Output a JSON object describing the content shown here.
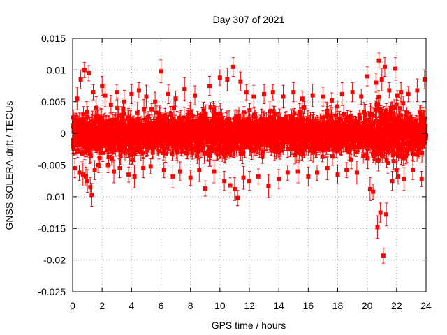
{
  "chart_data": {
    "type": "scatter",
    "title": "Day 307 of 2021",
    "xlabel": "GPS time / hours",
    "ylabel": "GNSS SOLERA-drift / TECUs",
    "xlim": [
      0,
      24
    ],
    "ylim": [
      -0.025,
      0.015
    ],
    "x_ticks": [
      0,
      2,
      4,
      6,
      8,
      10,
      12,
      14,
      16,
      18,
      20,
      22,
      24
    ],
    "x_tick_labels": [
      "0",
      "2",
      "4",
      "6",
      "8",
      "10",
      "12",
      "14",
      "16",
      "18",
      "20",
      "22",
      "24"
    ],
    "y_ticks": [
      0.015,
      0.01,
      0.005,
      0,
      -0.005,
      -0.01,
      -0.015,
      -0.02,
      -0.025
    ],
    "y_tick_labels": [
      "0.015",
      "0.01",
      "0.005",
      "0",
      "-0.005",
      "-0.01",
      "-0.015",
      "-0.02",
      "-0.025"
    ],
    "grid": true,
    "series": [
      {
        "name": "SOLERA drift",
        "color": "#ff0000",
        "marker": "square",
        "error_bars": true,
        "typical_spread": 0.0027,
        "typical_error": 0.0012,
        "x": [
          0.05,
          0.15,
          0.3,
          0.45,
          0.55,
          0.7,
          0.8,
          0.9,
          1.0,
          1.1,
          1.2,
          1.3,
          1.4,
          1.5,
          1.6,
          1.75,
          2.0,
          2.2,
          2.4,
          2.6,
          2.8,
          3.0,
          3.2,
          3.5,
          3.8,
          4.0,
          4.2,
          4.5,
          4.8,
          5.0,
          5.3,
          5.6,
          6.0,
          6.2,
          6.5,
          6.8,
          7.0,
          7.3,
          7.6,
          8.0,
          8.3,
          8.6,
          9.0,
          9.3,
          9.6,
          10.0,
          10.3,
          10.5,
          10.7,
          10.9,
          11.0,
          11.2,
          11.4,
          11.6,
          11.8,
          12.0,
          12.3,
          12.6,
          13.0,
          13.3,
          13.6,
          14.0,
          14.3,
          14.6,
          15.0,
          15.3,
          15.6,
          16.0,
          16.3,
          16.6,
          17.0,
          17.3,
          17.6,
          18.0,
          18.3,
          18.6,
          19.0,
          19.3,
          19.6,
          20.0,
          20.2,
          20.4,
          20.6,
          20.7,
          20.8,
          20.9,
          21.0,
          21.1,
          21.2,
          21.3,
          21.5,
          21.7,
          21.9,
          22.1,
          22.3,
          22.5,
          22.8,
          23.1,
          23.4,
          23.7,
          23.9
        ],
        "y": [
          0.0025,
          -0.0055,
          0.0055,
          -0.0062,
          0.0085,
          -0.0065,
          0.01,
          -0.0068,
          -0.0075,
          0.0095,
          -0.0085,
          -0.0097,
          0.0065,
          -0.0058,
          0.004,
          -0.005,
          0.0075,
          0.006,
          -0.005,
          0.0045,
          -0.006,
          0.0065,
          -0.0055,
          0.005,
          -0.0065,
          0.0062,
          -0.0068,
          0.0068,
          -0.0055,
          0.0058,
          -0.0052,
          0.005,
          0.0098,
          -0.0058,
          0.0062,
          -0.0068,
          0.0055,
          -0.006,
          0.007,
          -0.007,
          0.006,
          -0.0058,
          -0.0087,
          0.0075,
          -0.006,
          0.0088,
          -0.0075,
          0.0085,
          -0.0082,
          0.0105,
          -0.0088,
          -0.0102,
          0.0082,
          -0.007,
          0.0065,
          -0.0075,
          0.0058,
          -0.0068,
          0.0062,
          -0.0083,
          0.0065,
          -0.0072,
          0.0058,
          -0.0062,
          0.0065,
          -0.006,
          0.0055,
          -0.0068,
          0.006,
          -0.0062,
          0.0058,
          -0.0055,
          0.0052,
          -0.0065,
          0.0062,
          -0.0058,
          0.0065,
          -0.0062,
          0.0058,
          0.009,
          -0.0088,
          -0.0092,
          0.008,
          -0.0148,
          0.0115,
          -0.0125,
          0.0085,
          -0.0193,
          0.0105,
          -0.0128,
          0.0068,
          -0.0075,
          0.0102,
          -0.0068,
          0.0065,
          -0.0072,
          0.0062,
          -0.0058,
          0.0068,
          -0.0072,
          0.0085
        ]
      }
    ]
  }
}
